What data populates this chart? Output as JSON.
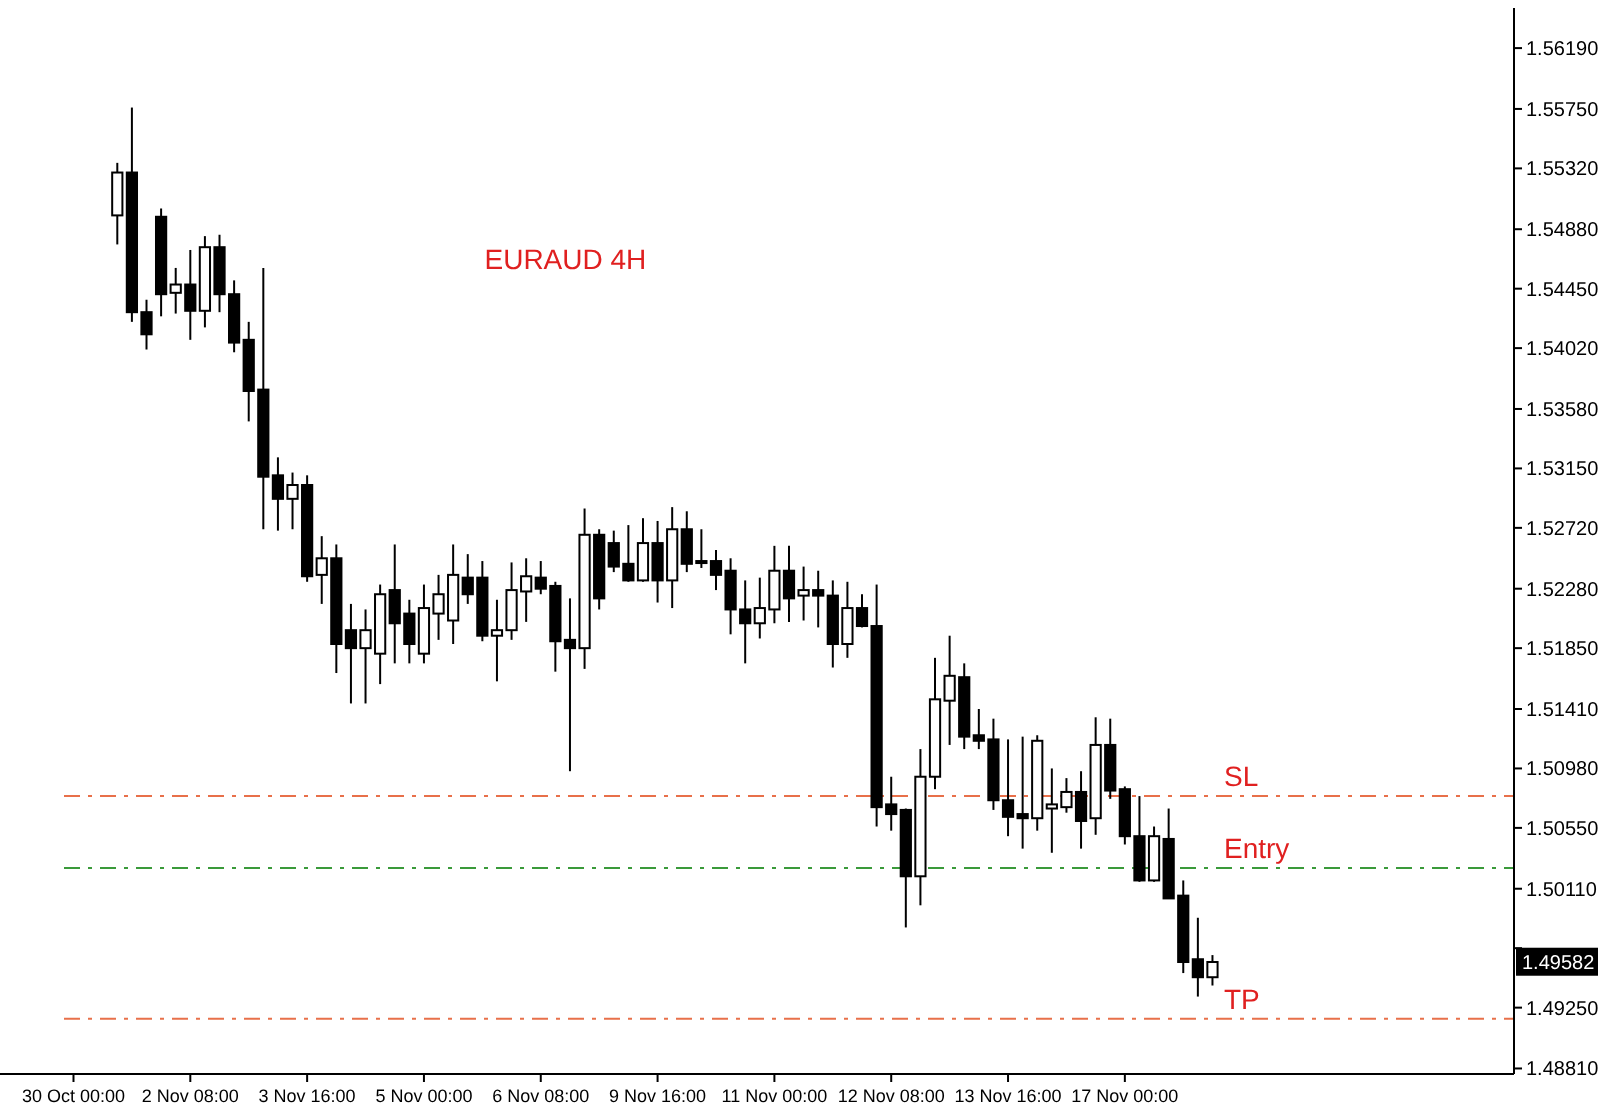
{
  "chart_data": {
    "type": "candlestick",
    "title": "EURAUD 4H",
    "categories": [
      "30 Oct 00:00",
      null,
      null,
      null,
      null,
      null,
      null,
      null,
      "2 Nov 08:00",
      null,
      null,
      null,
      null,
      null,
      null,
      null,
      "3 Nov 16:00",
      null,
      null,
      null,
      null,
      null,
      null,
      null,
      "5 Nov 00:00",
      null,
      null,
      null,
      null,
      null,
      null,
      null,
      "6 Nov 08:00",
      null,
      null,
      null,
      null,
      null,
      null,
      null,
      "9 Nov 16:00",
      null,
      null,
      null,
      null,
      null,
      null,
      null,
      "11 Nov 00:00",
      null,
      null,
      null,
      null,
      null,
      null,
      null,
      "12 Nov 08:00",
      null,
      null,
      null,
      null,
      null,
      null,
      null,
      "13 Nov 16:00",
      null,
      null,
      null,
      null,
      null,
      null,
      null,
      "17 Nov 00:00",
      null,
      null,
      null,
      null,
      null,
      null,
      null,
      null,
      null,
      null,
      null,
      null,
      null,
      null,
      null,
      null,
      null,
      null,
      null,
      null,
      null,
      null,
      null,
      null,
      null,
      null
    ],
    "ohlc": [
      null,
      null,
      null,
      [
        1.5498,
        1.5536,
        1.5477,
        1.5529
      ],
      [
        1.5529,
        1.5576,
        1.5421,
        1.5428
      ],
      [
        1.5428,
        1.5437,
        1.5401,
        1.5412
      ],
      [
        1.5497,
        1.5503,
        1.5425,
        1.5441
      ],
      [
        1.5442,
        1.546,
        1.5427,
        1.5448
      ],
      [
        1.5448,
        1.5473,
        1.5408,
        1.5429
      ],
      [
        1.5429,
        1.5483,
        1.5417,
        1.5475
      ],
      [
        1.5475,
        1.5484,
        1.5428,
        1.5441
      ],
      [
        1.5441,
        1.5451,
        1.5399,
        1.5406
      ],
      [
        1.5408,
        1.5421,
        1.5349,
        1.5371
      ],
      [
        1.5372,
        1.546,
        1.5271,
        1.5309
      ],
      [
        1.531,
        1.5323,
        1.527,
        1.5293
      ],
      [
        1.5293,
        1.5312,
        1.5271,
        1.5303
      ],
      [
        1.5303,
        1.531,
        1.5233,
        1.5237
      ],
      [
        1.5238,
        1.5266,
        1.5217,
        1.525
      ],
      [
        1.525,
        1.526,
        1.5167,
        1.5188
      ],
      [
        1.5198,
        1.5217,
        1.5145,
        1.5185
      ],
      [
        1.5185,
        1.5213,
        1.5145,
        1.5198
      ],
      [
        1.5181,
        1.5231,
        1.5159,
        1.5224
      ],
      [
        1.5227,
        1.526,
        1.5174,
        1.5203
      ],
      [
        1.521,
        1.522,
        1.5174,
        1.5188
      ],
      [
        1.5181,
        1.5231,
        1.5174,
        1.5214
      ],
      [
        1.521,
        1.5238,
        1.5191,
        1.5224
      ],
      [
        1.5205,
        1.526,
        1.5188,
        1.5238
      ],
      [
        1.5236,
        1.5253,
        1.5217,
        1.5224
      ],
      [
        1.5236,
        1.5248,
        1.519,
        1.5194
      ],
      [
        1.5194,
        1.522,
        1.5161,
        1.5198
      ],
      [
        1.5198,
        1.5247,
        1.5191,
        1.5227
      ],
      [
        1.5226,
        1.525,
        1.5204,
        1.5237
      ],
      [
        1.5236,
        1.5248,
        1.5224,
        1.5228
      ],
      [
        1.523,
        1.5233,
        1.5168,
        1.519
      ],
      [
        1.5191,
        1.5221,
        1.5096,
        1.5185
      ],
      [
        1.5185,
        1.5286,
        1.517,
        1.5267
      ],
      [
        1.5267,
        1.5271,
        1.5213,
        1.5221
      ],
      [
        1.5261,
        1.527,
        1.524,
        1.5244
      ],
      [
        1.5246,
        1.5274,
        1.5233,
        1.5234
      ],
      [
        1.5234,
        1.5279,
        1.5233,
        1.5261
      ],
      [
        1.5261,
        1.5277,
        1.5218,
        1.5234
      ],
      [
        1.5234,
        1.5287,
        1.5214,
        1.5271
      ],
      [
        1.5271,
        1.5284,
        1.524,
        1.5246
      ],
      [
        1.5248,
        1.5271,
        1.5243,
        1.5247
      ],
      [
        1.5248,
        1.5256,
        1.5227,
        1.5238
      ],
      [
        1.5241,
        1.525,
        1.5195,
        1.5213
      ],
      [
        1.5213,
        1.5234,
        1.5174,
        1.5203
      ],
      [
        1.5203,
        1.5236,
        1.5192,
        1.5214
      ],
      [
        1.5213,
        1.5259,
        1.5203,
        1.5241
      ],
      [
        1.5241,
        1.5259,
        1.5204,
        1.5221
      ],
      [
        1.5223,
        1.5244,
        1.5205,
        1.5227
      ],
      [
        1.5227,
        1.5241,
        1.52,
        1.5223
      ],
      [
        1.5223,
        1.5234,
        1.5171,
        1.5188
      ],
      [
        1.5188,
        1.5233,
        1.5178,
        1.5214
      ],
      [
        1.5214,
        1.5224,
        1.52,
        1.5201
      ],
      [
        1.5201,
        1.5231,
        1.5056,
        1.507
      ],
      [
        1.5072,
        1.5092,
        1.5053,
        1.5065
      ],
      [
        1.5068,
        1.5069,
        1.4983,
        1.502
      ],
      [
        1.502,
        1.5112,
        1.4999,
        1.5092
      ],
      [
        1.5092,
        1.5178,
        1.5083,
        1.5148
      ],
      [
        1.5147,
        1.5194,
        1.5115,
        1.5165
      ],
      [
        1.5164,
        1.5174,
        1.5112,
        1.5121
      ],
      [
        1.5122,
        1.5141,
        1.5112,
        1.5118
      ],
      [
        1.5119,
        1.5134,
        1.5068,
        1.5075
      ],
      [
        1.5075,
        1.5119,
        1.5049,
        1.5063
      ],
      [
        1.5065,
        1.5121,
        1.504,
        1.5062
      ],
      [
        1.5062,
        1.5122,
        1.5053,
        1.5118
      ],
      [
        1.5069,
        1.5098,
        1.5037,
        1.5072
      ],
      [
        1.507,
        1.5091,
        1.5066,
        1.5081
      ],
      [
        1.5081,
        1.5096,
        1.504,
        1.506
      ],
      [
        1.5062,
        1.5135,
        1.505,
        1.5115
      ],
      [
        1.5115,
        1.5134,
        1.5076,
        1.5082
      ],
      [
        1.5083,
        1.5085,
        1.5043,
        1.5049
      ],
      [
        1.5049,
        1.5078,
        1.5016,
        1.5017
      ],
      [
        1.5017,
        1.5056,
        1.5016,
        1.5049
      ],
      [
        1.5047,
        1.5069,
        1.5004,
        1.5004
      ],
      [
        1.5006,
        1.5017,
        1.495,
        1.4958
      ],
      [
        1.496,
        1.499,
        1.4933,
        1.4947
      ],
      [
        1.4947,
        1.4963,
        1.4941,
        1.4958
      ],
      null,
      null,
      null,
      null,
      null,
      null,
      null,
      null,
      null,
      null,
      null,
      null,
      null,
      null,
      null,
      null,
      null,
      null,
      null,
      null
    ],
    "ylim": [
      1.4877,
      1.5648
    ],
    "yticks": [
      {
        "value": 1.5619,
        "label": "1.56190"
      },
      {
        "value": 1.5575,
        "label": "1.55750"
      },
      {
        "value": 1.5532,
        "label": "1.55320"
      },
      {
        "value": 1.5488,
        "label": "1.54880"
      },
      {
        "value": 1.5445,
        "label": "1.54450"
      },
      {
        "value": 1.5402,
        "label": "1.54020"
      },
      {
        "value": 1.5358,
        "label": "1.53580"
      },
      {
        "value": 1.5315,
        "label": "1.53150"
      },
      {
        "value": 1.5272,
        "label": "1.52720"
      },
      {
        "value": 1.5228,
        "label": "1.52280"
      },
      {
        "value": 1.5185,
        "label": "1.51850"
      },
      {
        "value": 1.5141,
        "label": "1.51410"
      },
      {
        "value": 1.5098,
        "label": "1.50980"
      },
      {
        "value": 1.5055,
        "label": "1.50550"
      },
      {
        "value": 1.5011,
        "label": "1.50110"
      },
      {
        "value": 1.4968,
        "label": null
      },
      {
        "value": 1.4925,
        "label": "1.49250"
      },
      {
        "value": 1.4881,
        "label": "1.48810"
      }
    ],
    "ref_lines": [
      {
        "axis": "y",
        "value": 1.5078,
        "label": "SL",
        "color": "#e8704a",
        "line_style": "dashdot"
      },
      {
        "axis": "y",
        "value": 1.5026,
        "label": "Entry",
        "color": "#3a9a3a",
        "line_style": "dashdot"
      },
      {
        "axis": "y",
        "value": 1.4917,
        "label": "TP",
        "color": "#e8704a",
        "line_style": "dashdot"
      }
    ],
    "annotations": [
      {
        "text": "1.49582",
        "y": 1.49582
      }
    ],
    "grid": false
  }
}
